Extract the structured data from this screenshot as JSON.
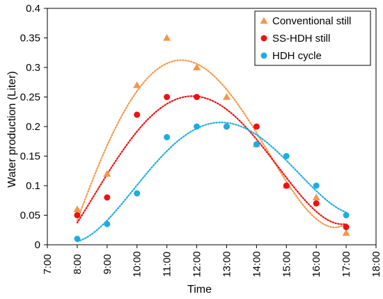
{
  "chart_data": {
    "type": "scatter",
    "xlabel": "Time",
    "ylabel": "Water production  (Liter)",
    "xlim": [
      7,
      18
    ],
    "ylim": [
      0,
      0.4
    ],
    "x_ticks": [
      7,
      8,
      9,
      10,
      11,
      12,
      13,
      14,
      15,
      16,
      17,
      18
    ],
    "x_tick_labels": [
      "7:00",
      "8:00",
      "9:00",
      "10:00",
      "11:00",
      "12:00",
      "13:00",
      "14:00",
      "15:00",
      "16:00",
      "17:00",
      "18:00"
    ],
    "y_ticks": [
      0,
      0.05,
      0.1,
      0.15,
      0.2,
      0.25,
      0.3,
      0.35,
      0.4
    ],
    "y_tick_labels": [
      "0",
      "0.05",
      "0.1",
      "0.15",
      "0.2",
      "0.25",
      "0.3",
      "0.35",
      "0.4"
    ],
    "grid": false,
    "legend_position": "top-right",
    "trendline": "dotted polynomial fit",
    "series": [
      {
        "name": "Conventional still",
        "marker": "triangle",
        "color": "#F79646",
        "x": [
          8,
          9,
          10,
          11,
          12,
          13,
          14,
          15,
          16,
          17
        ],
        "y": [
          0.06,
          0.12,
          0.27,
          0.35,
          0.3,
          0.25,
          0.17,
          0.1,
          0.08,
          0.02
        ]
      },
      {
        "name": "SS-HDH still",
        "marker": "circle",
        "color": "#EE1111",
        "x": [
          8,
          9,
          10,
          11,
          12,
          13,
          14,
          15,
          16,
          17
        ],
        "y": [
          0.05,
          0.08,
          0.22,
          0.25,
          0.25,
          0.2,
          0.2,
          0.1,
          0.07,
          0.03
        ]
      },
      {
        "name": "HDH cycle",
        "marker": "circle",
        "color": "#1CADE4",
        "x": [
          8,
          9,
          10,
          11,
          12,
          13,
          14,
          15,
          16,
          17
        ],
        "y": [
          0.01,
          0.035,
          0.087,
          0.182,
          0.2,
          0.2,
          0.17,
          0.15,
          0.1,
          0.05
        ]
      }
    ]
  }
}
